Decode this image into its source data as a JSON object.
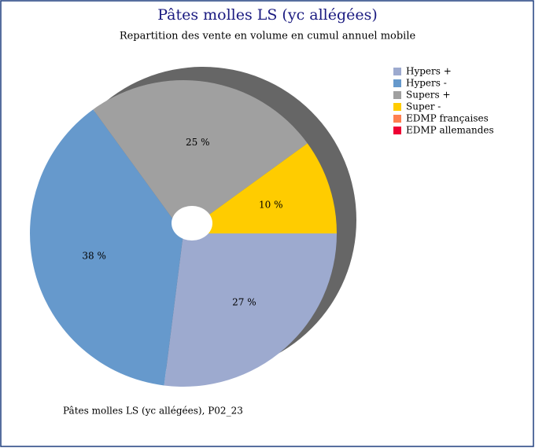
{
  "chart_data": {
    "type": "pie",
    "title": "Pâtes molles LS (yc allégées)",
    "subtitle": "Repartition des vente en volume en cumul annuel mobile",
    "footnote": "Pâtes molles LS (yc allégées), P02_23",
    "categories": [
      "Hypers +",
      "Hypers -",
      "Supers +",
      "Super -",
      "EDMP françaises",
      "EDMP allemandes"
    ],
    "values": [
      27,
      38,
      25,
      10,
      0,
      0
    ],
    "value_labels": [
      "27 %",
      "38 %",
      "25 %",
      "10 %",
      null,
      null
    ],
    "colors": [
      "#9daacf",
      "#6699cc",
      "#a0a0a0",
      "#ffcc00",
      "#ff7f50",
      "#ee0033"
    ],
    "legend": "top-right"
  }
}
